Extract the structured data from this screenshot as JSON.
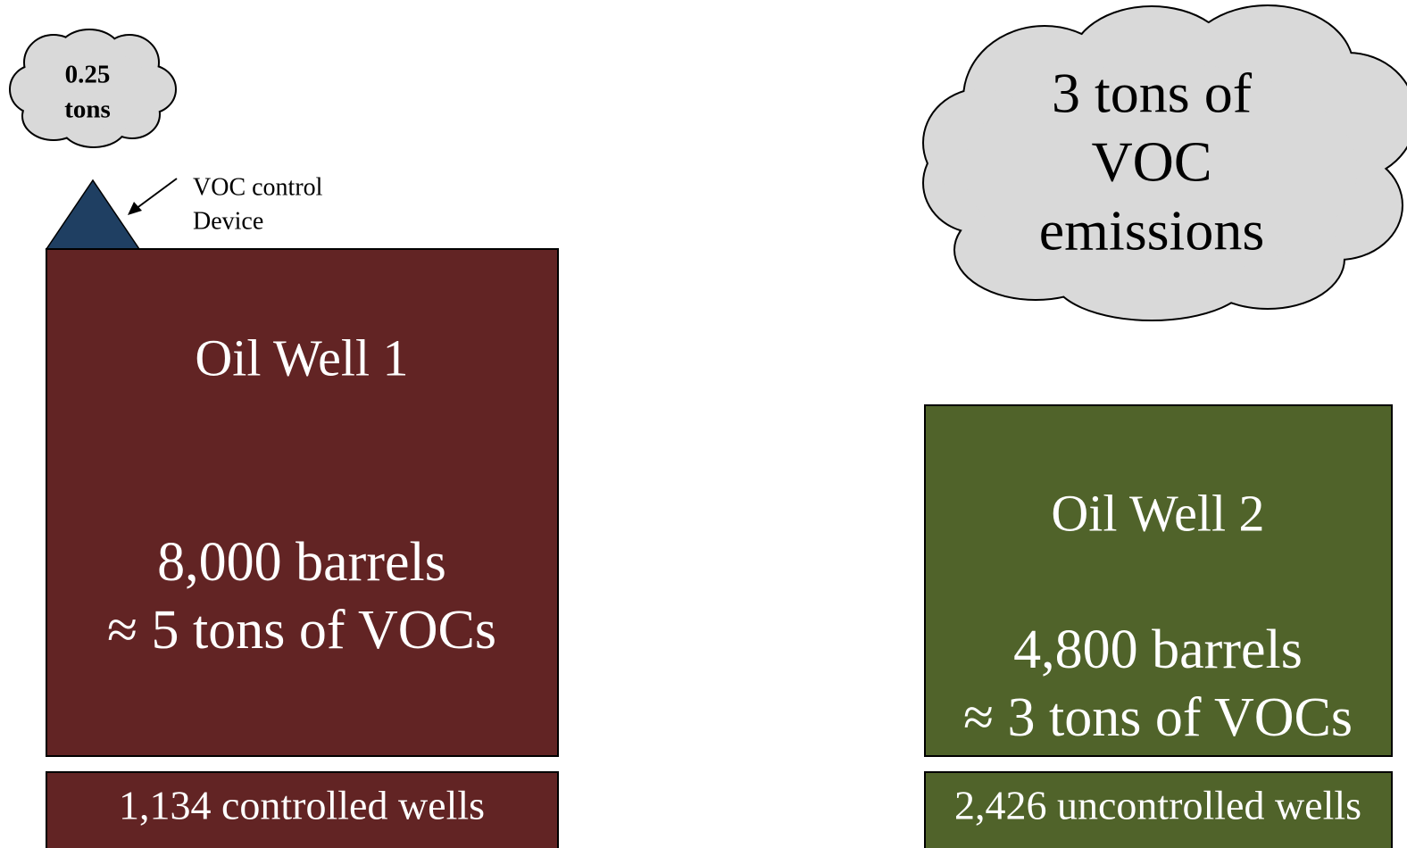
{
  "small_cloud": {
    "lines": [
      "0.25",
      "tons"
    ]
  },
  "control_device_label": {
    "lines": [
      "VOC control",
      "Device"
    ]
  },
  "well_1": {
    "title": "Oil Well 1",
    "lines": [
      "8,000 barrels",
      "≈ 5 tons of VOCs"
    ],
    "count": "1,134 controlled wells"
  },
  "big_cloud": {
    "lines": [
      "3 tons of",
      "VOC",
      "emissions"
    ]
  },
  "well_2": {
    "title": "Oil Well 2",
    "lines": [
      "4,800 barrels",
      "≈ 3 tons of VOCs"
    ],
    "count": "2,426 uncontrolled wells"
  }
}
